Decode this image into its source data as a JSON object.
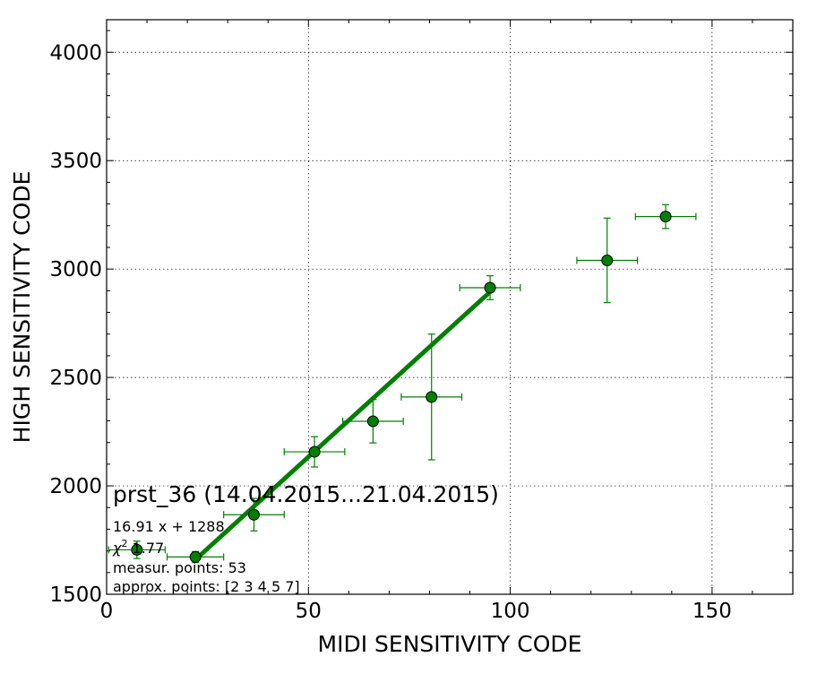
{
  "chart_data": {
    "type": "scatter",
    "xlabel": "MIDI SENSITIVITY CODE",
    "ylabel": "HIGH SENSITIVITY CODE",
    "xlim": [
      0,
      170
    ],
    "ylim": [
      1500,
      4150
    ],
    "xticks": [
      0,
      50,
      100,
      150
    ],
    "yticks": [
      1500,
      2000,
      2500,
      3000,
      3500,
      4000
    ],
    "grid": true,
    "colors": {
      "marker": "#008000",
      "fit_line": "#008000",
      "errorbar": "#008000"
    },
    "series": [
      {
        "type": "errorbar",
        "points": [
          {
            "x": 7.5,
            "y": 1705,
            "xerr": 7,
            "yerr": 40
          },
          {
            "x": 22.0,
            "y": 1672,
            "xerr": 7,
            "yerr": 25
          },
          {
            "x": 36.5,
            "y": 1867,
            "xerr": 7.5,
            "yerr": 75
          },
          {
            "x": 51.5,
            "y": 2157,
            "xerr": 7.5,
            "yerr": 70
          },
          {
            "x": 66.0,
            "y": 2298,
            "xerr": 7.5,
            "yerr": 100
          },
          {
            "x": 80.5,
            "y": 2410,
            "xerr": 7.5,
            "yerr": 290
          },
          {
            "x": 95.0,
            "y": 2914,
            "xerr": 7.5,
            "yerr": 55
          },
          {
            "x": 124.0,
            "y": 3040,
            "xerr": 7.5,
            "yerr": 195
          },
          {
            "x": 138.5,
            "y": 3242,
            "xerr": 7.5,
            "yerr": 55
          }
        ]
      },
      {
        "type": "fit_line",
        "x": [
          22.0,
          95.0
        ],
        "slope": 16.91,
        "intercept": 1288
      }
    ],
    "annotations": {
      "title": "prst_36 (14.04.2015...21.04.2015)",
      "fit_equation": "16.91 x + 1288",
      "chi2_symbol": "χ",
      "chi2_sup": "2",
      "chi2_value": " 1.77",
      "measur_points": "measur. points: 53",
      "approx_points": "approx. points: [2 3 4 5 7]"
    }
  }
}
